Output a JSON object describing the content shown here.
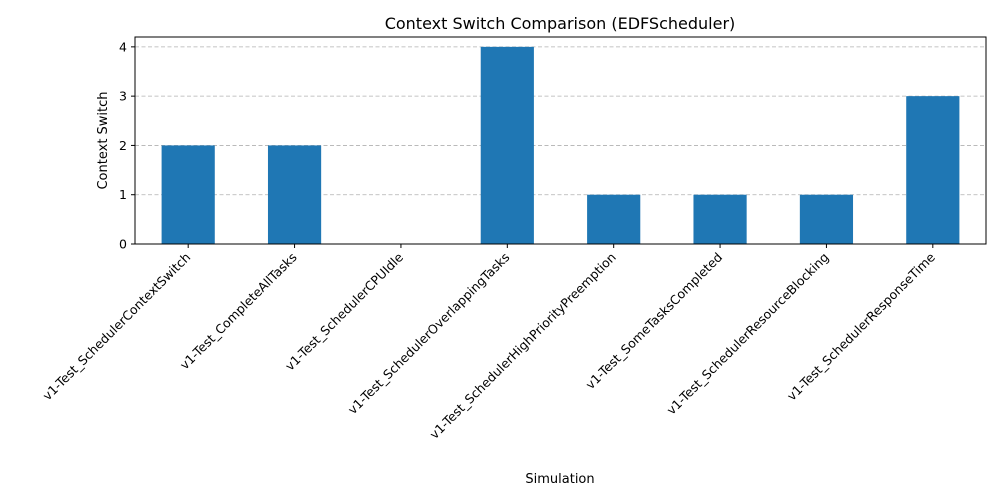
{
  "chart_data": {
    "type": "bar",
    "title": "Context Switch Comparison (EDFScheduler)",
    "xlabel": "Simulation",
    "ylabel": "Context Switch",
    "categories": [
      "v1-Test_SchedulerContextSwitch",
      "v1-Test_CompleteAllTasks",
      "v1-Test_SchedulerCPUIdle",
      "v1-Test_SchedulerOverlappingTasks",
      "v1-Test_SchedulerHighPriorityPreemption",
      "v1-Test_SomeTasksCompleted",
      "v1-Test_SchedulerResourceBlocking",
      "v1-Test_SchedulerResponseTime"
    ],
    "values": [
      2,
      2,
      0,
      4,
      1,
      1,
      1,
      3
    ],
    "ylim": [
      0,
      4.2
    ],
    "yticks": [
      0,
      1,
      2,
      3,
      4
    ],
    "grid": "y-dashed",
    "bar_color": "#1f77b4"
  }
}
